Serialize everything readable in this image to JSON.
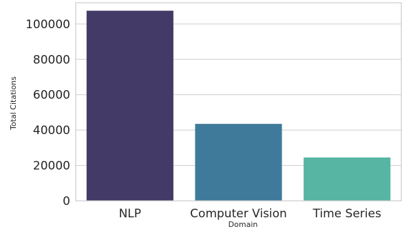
{
  "chart_data": {
    "type": "bar",
    "title": "",
    "xlabel": "Domain",
    "ylabel": "Total Citations",
    "categories": [
      "NLP",
      "Computer Vision",
      "Time Series"
    ],
    "values": [
      107500,
      43500,
      24500
    ],
    "colors": [
      "#443a67",
      "#3f7a9a",
      "#57b5a3"
    ],
    "ylim": [
      0,
      112000
    ],
    "yticks": [
      0,
      20000,
      40000,
      60000,
      80000,
      100000
    ],
    "grid": true,
    "legend": "none"
  }
}
